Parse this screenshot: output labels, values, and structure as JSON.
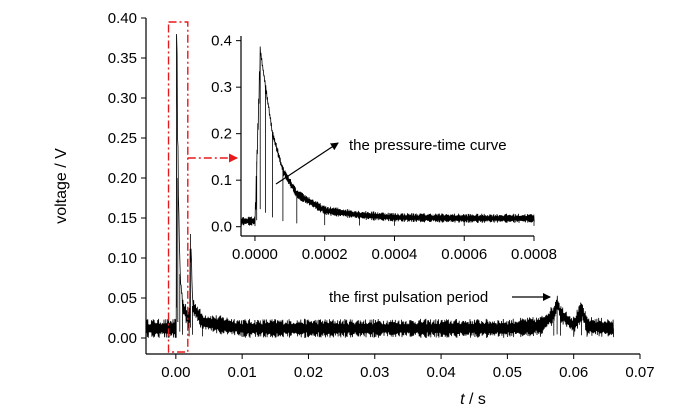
{
  "chart_data": [
    {
      "type": "line",
      "role": "main",
      "xlabel_italic": "t",
      "xlabel_unit": " / s",
      "ylabel": "voltage / V",
      "xlim": [
        -0.0045,
        0.07
      ],
      "ylim": [
        -0.02,
        0.4
      ],
      "xticks": [
        "0.00",
        "0.01",
        "0.02",
        "0.03",
        "0.04",
        "0.05",
        "0.06",
        "0.07"
      ],
      "xtick_values": [
        0.0,
        0.01,
        0.02,
        0.03,
        0.04,
        0.05,
        0.06,
        0.07
      ],
      "yticks": [
        "0.00",
        "0.05",
        "0.10",
        "0.15",
        "0.20",
        "0.25",
        "0.30",
        "0.35",
        "0.40"
      ],
      "ytick_values": [
        0.0,
        0.05,
        0.1,
        0.15,
        0.2,
        0.25,
        0.3,
        0.35,
        0.4
      ],
      "series": [
        {
          "x": [
            -0.0045,
            -0.001,
            0.0,
            0.0001,
            0.0003,
            0.0006,
            0.001,
            0.002,
            0.0022,
            0.0025,
            0.004,
            0.01,
            0.02,
            0.03,
            0.04,
            0.05,
            0.055,
            0.057,
            0.0575,
            0.058,
            0.06,
            0.0612,
            0.062,
            0.066
          ],
          "y": [
            0.012,
            0.012,
            0.012,
            0.38,
            0.2,
            0.08,
            0.04,
            0.02,
            0.13,
            0.04,
            0.02,
            0.012,
            0.012,
            0.012,
            0.012,
            0.012,
            0.015,
            0.03,
            0.045,
            0.03,
            0.015,
            0.035,
            0.015,
            0.012
          ],
          "noise": 0.012
        }
      ],
      "annotations": [
        "the first pulsation period"
      ],
      "highlight_x_range": [
        -0.0005,
        0.0012
      ]
    },
    {
      "type": "line",
      "role": "inset",
      "xlim": [
        -4e-05,
        0.0008
      ],
      "ylim": [
        -0.02,
        0.41
      ],
      "xticks": [
        "0.0000",
        "0.0002",
        "0.0004",
        "0.0006",
        "0.0008"
      ],
      "xtick_values": [
        0.0,
        0.0002,
        0.0004,
        0.0006,
        0.0008
      ],
      "yticks": [
        "0.0",
        "0.1",
        "0.2",
        "0.3",
        "0.4"
      ],
      "ytick_values": [
        0.0,
        0.1,
        0.2,
        0.3,
        0.4
      ],
      "series": [
        {
          "x": [
            -4e-05,
            0.0,
            5e-06,
            1.5e-05,
            3e-05,
            5e-05,
            8e-05,
            0.00012,
            0.0002,
            0.0003,
            0.0004,
            0.0006,
            0.0008
          ],
          "y": [
            0.012,
            0.012,
            0.14,
            0.378,
            0.3,
            0.2,
            0.12,
            0.07,
            0.035,
            0.025,
            0.02,
            0.018,
            0.018
          ],
          "noise": 0.01
        }
      ],
      "annotations": [
        "the pressure-time curve"
      ]
    }
  ],
  "colors": {
    "highlight": "#e8191a",
    "trace": "#000000",
    "axis": "#000000"
  }
}
